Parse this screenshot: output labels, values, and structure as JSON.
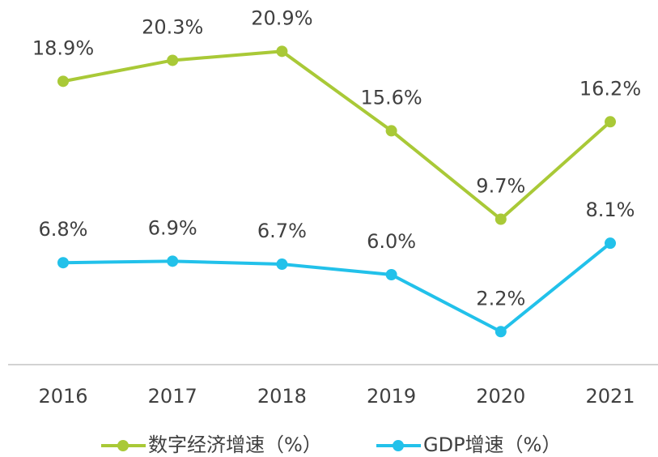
{
  "chart_data": {
    "type": "line",
    "categories": [
      "2016",
      "2017",
      "2018",
      "2019",
      "2020",
      "2021"
    ],
    "series": [
      {
        "name": "数字经济增速（%）",
        "color": "#a9c937",
        "values": [
          18.9,
          20.3,
          20.9,
          15.6,
          9.7,
          16.2
        ],
        "value_labels": [
          "18.9%",
          "20.3%",
          "20.9%",
          "15.6%",
          "9.7%",
          "16.2%"
        ]
      },
      {
        "name": "GDP增速（%）",
        "color": "#22c1ea",
        "values": [
          6.8,
          6.9,
          6.7,
          6.0,
          2.2,
          8.1
        ],
        "value_labels": [
          "6.8%",
          "6.9%",
          "6.7%",
          "6.0%",
          "2.2%",
          "8.1%"
        ]
      }
    ],
    "ylim": [
      0,
      24
    ],
    "legend": "bottom"
  }
}
